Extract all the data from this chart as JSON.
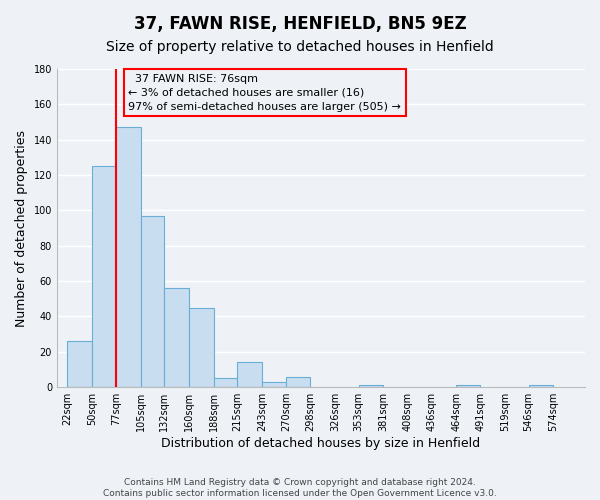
{
  "title": "37, FAWN RISE, HENFIELD, BN5 9EZ",
  "subtitle": "Size of property relative to detached houses in Henfield",
  "xlabel": "Distribution of detached houses by size in Henfield",
  "ylabel": "Number of detached properties",
  "bar_left_edges": [
    22,
    50,
    77,
    105,
    132,
    160,
    188,
    215,
    243,
    270,
    298,
    326,
    353,
    381,
    408,
    436,
    464,
    491,
    519,
    546
  ],
  "bar_widths": [
    28,
    27,
    28,
    27,
    28,
    28,
    27,
    28,
    27,
    28,
    28,
    27,
    28,
    27,
    28,
    28,
    27,
    28,
    27,
    28
  ],
  "bar_heights": [
    26,
    125,
    147,
    97,
    56,
    45,
    5,
    14,
    3,
    6,
    0,
    0,
    1,
    0,
    0,
    0,
    1,
    0,
    0,
    1
  ],
  "bar_color": "#c8ddf0",
  "bar_edgecolor": "#6aaed6",
  "ylim": [
    0,
    180
  ],
  "yticks": [
    0,
    20,
    40,
    60,
    80,
    100,
    120,
    140,
    160,
    180
  ],
  "xtick_labels": [
    "22sqm",
    "50sqm",
    "77sqm",
    "105sqm",
    "132sqm",
    "160sqm",
    "188sqm",
    "215sqm",
    "243sqm",
    "270sqm",
    "298sqm",
    "326sqm",
    "353sqm",
    "381sqm",
    "408sqm",
    "436sqm",
    "464sqm",
    "491sqm",
    "519sqm",
    "546sqm",
    "574sqm"
  ],
  "xtick_positions": [
    22,
    50,
    77,
    105,
    132,
    160,
    188,
    215,
    243,
    270,
    298,
    326,
    353,
    381,
    408,
    436,
    464,
    491,
    519,
    546,
    574
  ],
  "red_line_x": 77,
  "annotation_title": "37 FAWN RISE: 76sqm",
  "annotation_line1": "← 3% of detached houses are smaller (16)",
  "annotation_line2": "97% of semi-detached houses are larger (505) →",
  "footer_line1": "Contains HM Land Registry data © Crown copyright and database right 2024.",
  "footer_line2": "Contains public sector information licensed under the Open Government Licence v3.0.",
  "background_color": "#eef2f7",
  "grid_color": "#ffffff",
  "title_fontsize": 12,
  "subtitle_fontsize": 10,
  "axis_label_fontsize": 9,
  "tick_fontsize": 7,
  "annotation_fontsize": 8,
  "footer_fontsize": 6.5
}
